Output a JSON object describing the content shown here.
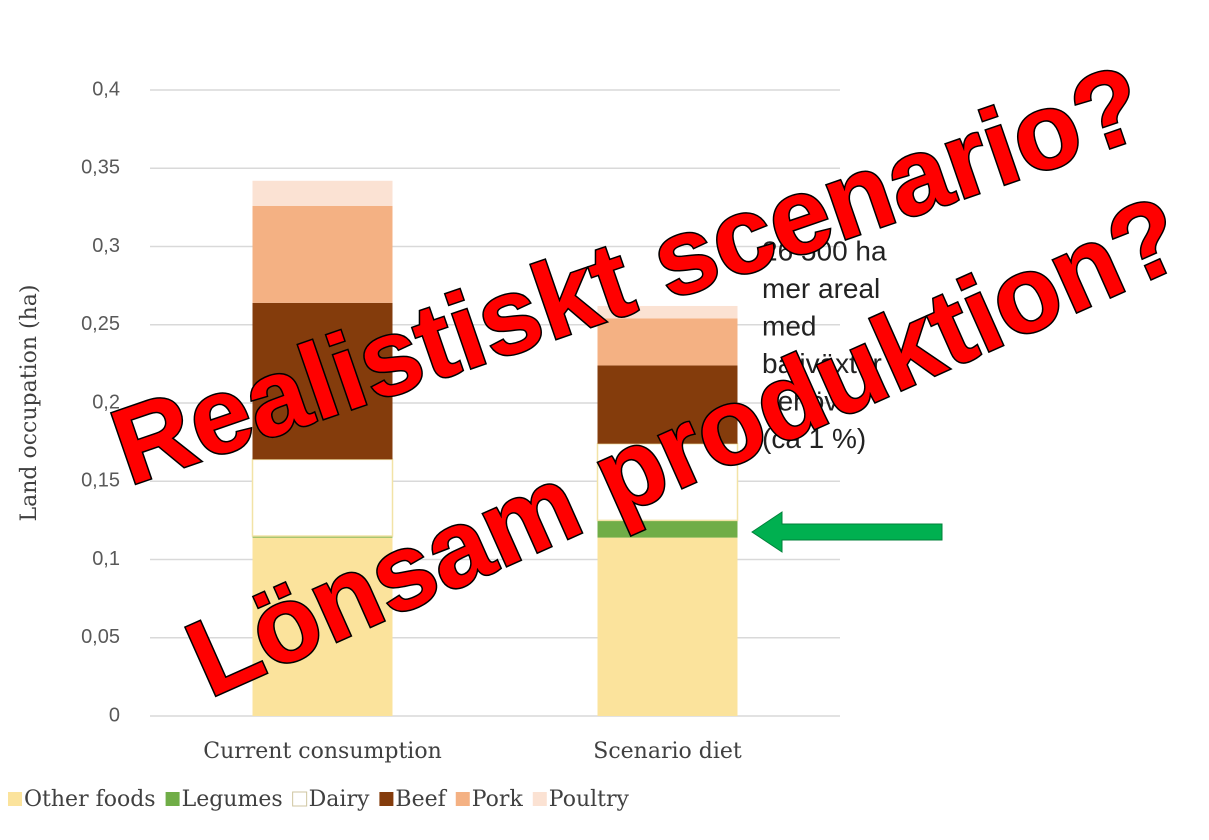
{
  "chart_data": {
    "type": "stacked_bar",
    "y_label": "Land occupation (ha)",
    "categories": [
      "Current consumption",
      "Scenario diet"
    ],
    "series": [
      {
        "name": "Other foods",
        "color": "#fbe39c",
        "values": [
          0.114,
          0.114
        ]
      },
      {
        "name": "Legumes",
        "color": "#70ad47",
        "values": [
          0.001,
          0.011
        ]
      },
      {
        "name": "Dairy",
        "color": "#ffffff",
        "values": [
          0.049,
          0.049
        ]
      },
      {
        "name": "Beef",
        "color": "#843c0c",
        "values": [
          0.1,
          0.05
        ]
      },
      {
        "name": "Pork",
        "color": "#f4b183",
        "values": [
          0.062,
          0.03
        ]
      },
      {
        "name": "Poultry",
        "color": "#fbe2d3",
        "values": [
          0.016,
          0.008
        ]
      }
    ],
    "ylim": [
      0,
      0.4
    ],
    "yticks": [
      0,
      {
        "value": 0.05,
        "label": "0,05"
      },
      {
        "value": 0.1,
        "label": "0,1"
      },
      {
        "value": 0.15,
        "label": "0,15"
      },
      {
        "value": 0.2,
        "label": "0,2"
      },
      {
        "value": 0.25,
        "label": "0,25"
      },
      {
        "value": 0.3,
        "label": "0,3"
      },
      {
        "value": 0.35,
        "label": "0,35"
      },
      {
        "value": 0.4,
        "label": "0,4"
      }
    ],
    "grid": true,
    "legend": "bottom",
    "annotation": [
      "26 500 ha",
      "mer areal",
      "med",
      "baljväxter",
      "behövs",
      "(ca 1 %)"
    ],
    "overlay_texts": [
      "Realistiskt scenario?",
      "Lönsam produktion?"
    ]
  }
}
